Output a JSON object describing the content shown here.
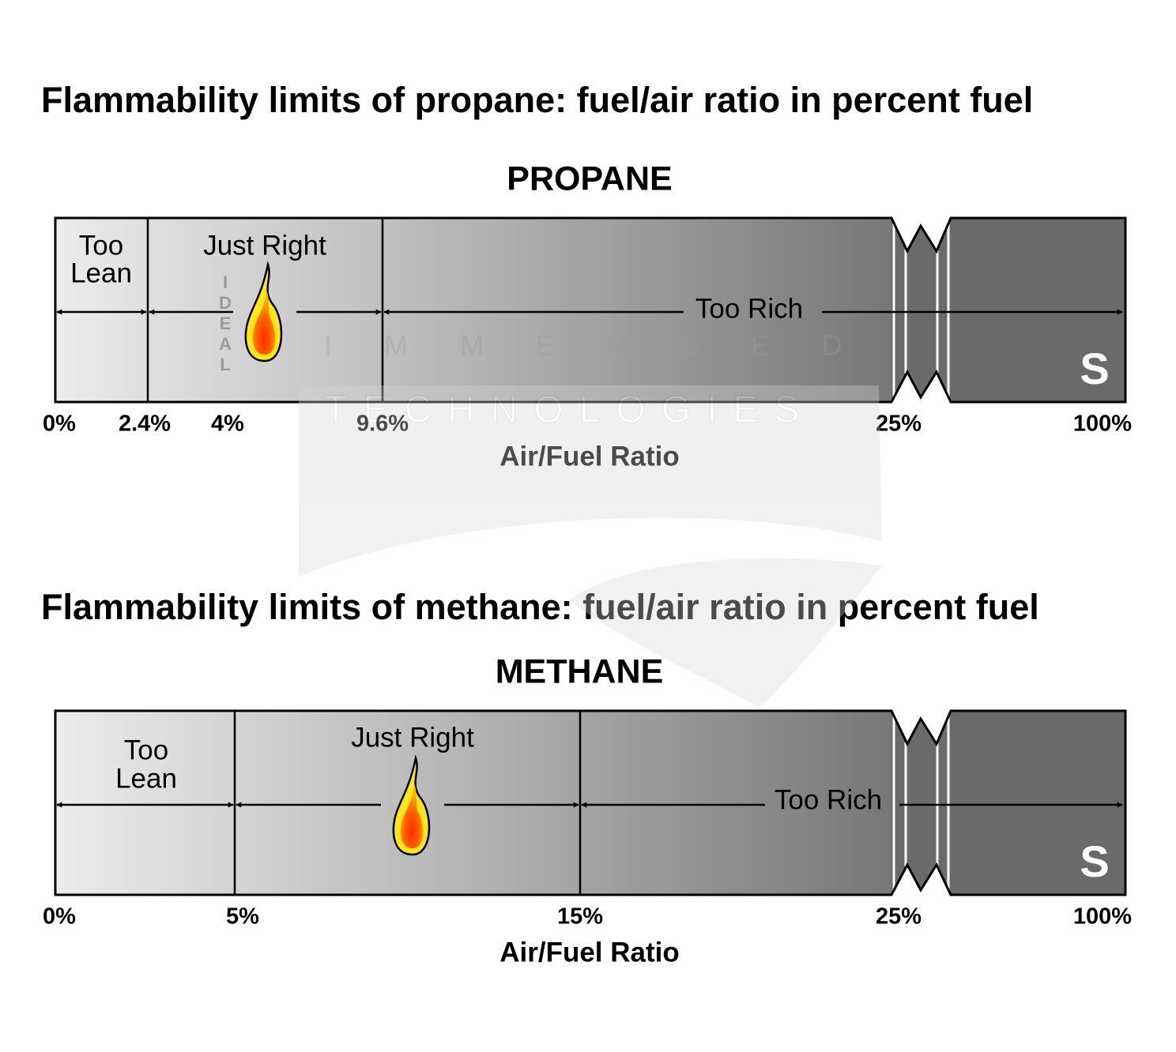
{
  "panels": [
    {
      "title": "Flammability limits of propane: fuel/air ratio in percent fuel",
      "fuel": "PROPANE",
      "zones": {
        "lean": [
          "Too",
          "Lean"
        ],
        "right": "Just Right",
        "rich": "Too Rich"
      },
      "ideal": "IDEAL",
      "ticks": [
        "0%",
        "2.4%",
        "4%",
        "9.6%",
        "25%",
        "100%"
      ],
      "axis_label": "Air/Fuel Ratio",
      "logo": "S"
    },
    {
      "title": "Flammability limits of methane: fuel/air ratio in percent fuel",
      "fuel": "METHANE",
      "zones": {
        "lean": [
          "Too",
          "Lean"
        ],
        "right": "Just Right",
        "rich": "Too Rich"
      },
      "ticks": [
        "0%",
        "5%",
        "15%",
        "25%",
        "100%"
      ],
      "axis_label": "Air/Fuel Ratio",
      "logo": "S"
    }
  ],
  "watermark": [
    "IMMERSED",
    "TECHNOLOGIES"
  ]
}
